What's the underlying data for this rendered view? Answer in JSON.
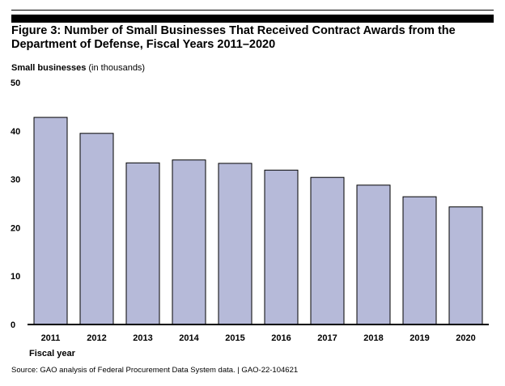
{
  "figure": {
    "title_line1": "Figure 3: Number of Small Businesses That Received Contract Awards from the",
    "title_line2": "Department of Defense, Fiscal Years 2011–2020",
    "source": "Source: GAO analysis of Federal Procurement Data System data.  |  GAO-22-104621"
  },
  "chart_data": {
    "type": "bar",
    "ylabel": "Small businesses",
    "ylabel_unit": "(in thousands)",
    "xlabel": "Fiscal year",
    "categories": [
      "2011",
      "2012",
      "2013",
      "2014",
      "2015",
      "2016",
      "2017",
      "2018",
      "2019",
      "2020"
    ],
    "values": [
      42.8,
      39.5,
      33.4,
      34.0,
      33.3,
      31.9,
      30.4,
      28.8,
      26.4,
      24.3
    ],
    "ylim": [
      0,
      50
    ],
    "yticks": [
      0,
      10,
      20,
      30,
      40,
      50
    ],
    "grid": false,
    "bar_color": "#b6bad9",
    "bar_edge_color": "#000000"
  }
}
